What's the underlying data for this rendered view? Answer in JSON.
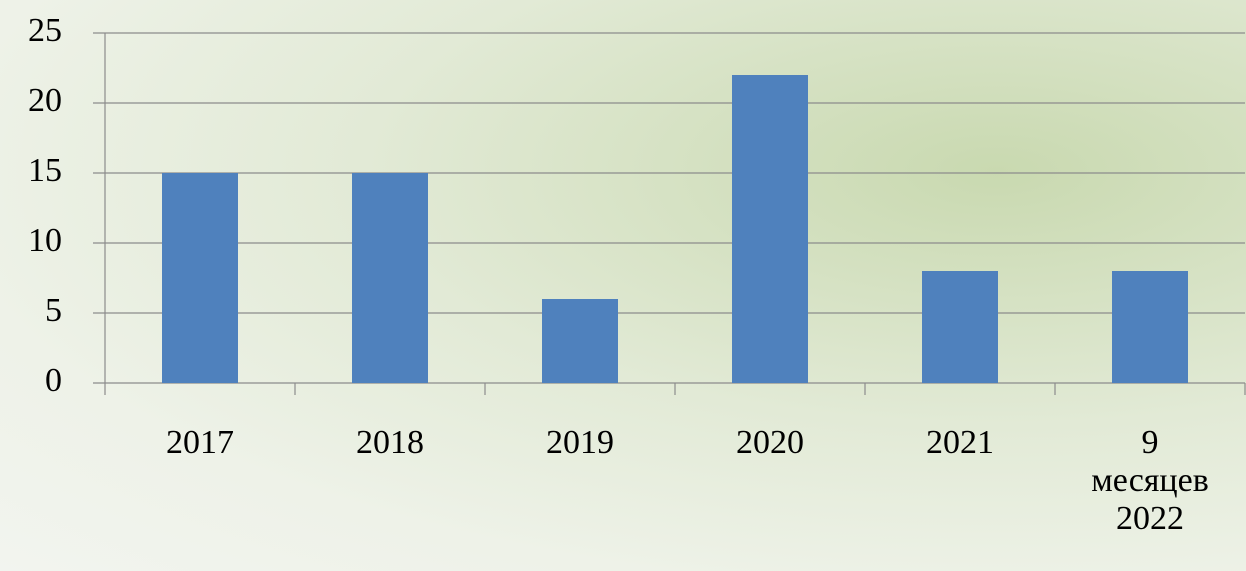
{
  "chart_data": {
    "type": "bar",
    "categories": [
      "2017",
      "2018",
      "2019",
      "2020",
      "2021",
      "9 месяцев 2022"
    ],
    "values": [
      15,
      15,
      6,
      22,
      8,
      8
    ],
    "color": "#4f81bd",
    "ylim": [
      0,
      25
    ],
    "yticks": [
      0,
      5,
      10,
      15,
      20,
      25
    ],
    "grid": true
  }
}
